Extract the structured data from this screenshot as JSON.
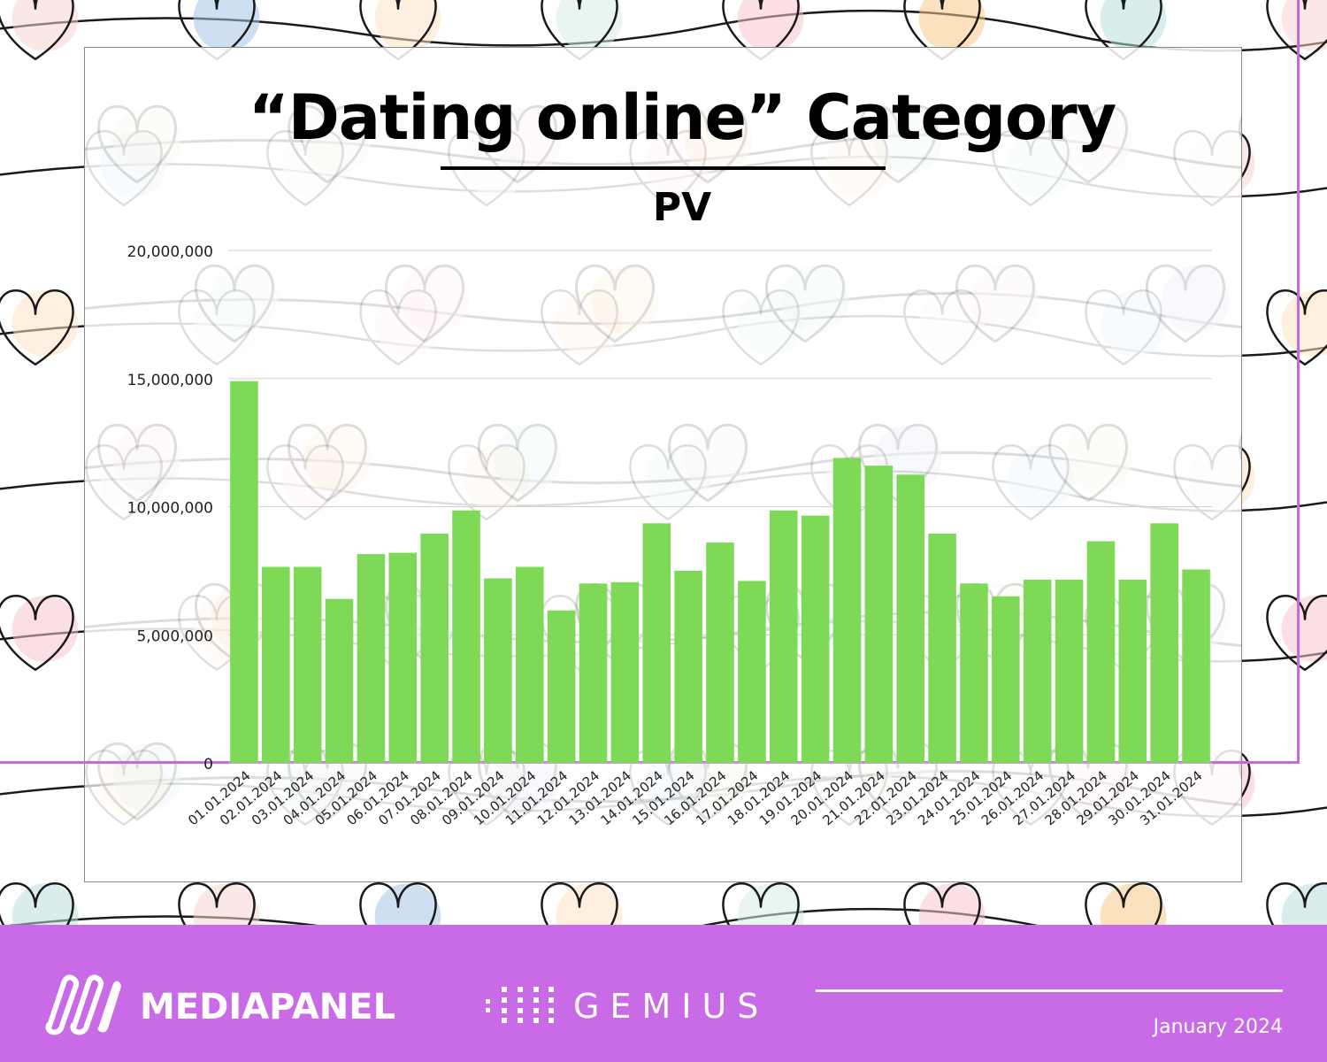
{
  "report": {
    "title": "“Dating online” Category",
    "subtitle": "PV",
    "period": "January 2024"
  },
  "brands": {
    "mediapanel": "MEDIAPANEL",
    "gemius": "GEMIUS"
  },
  "colors": {
    "bar": "#7ed957",
    "footer": "#c96ae6",
    "frame": "#c46bd8",
    "grid": "#d0d0d0"
  },
  "chart_data": {
    "type": "bar",
    "title": "“Dating online” Category",
    "subtitle": "PV",
    "xlabel": "",
    "ylabel": "",
    "ylim": [
      0,
      20000000
    ],
    "yticks": [
      0,
      5000000,
      10000000,
      15000000,
      20000000
    ],
    "ytick_labels": [
      "0",
      "5,000,000",
      "10,000,000",
      "15,000,000",
      "20,000,000"
    ],
    "grid": true,
    "legend": "none",
    "categories": [
      "01.01.2024",
      "02.01.2024",
      "03.01.2024",
      "04.01.2024",
      "05.01.2024",
      "06.01.2024",
      "07.01.2024",
      "08.01.2024",
      "09.01.2024",
      "10.01.2024",
      "11.01.2024",
      "12.01.2024",
      "13.01.2024",
      "14.01.2024",
      "15.01.2024",
      "16.01.2024",
      "17.01.2024",
      "18.01.2024",
      "19.01.2024",
      "20.01.2024",
      "21.01.2024",
      "22.01.2024",
      "23.01.2024",
      "24.01.2024",
      "25.01.2024",
      "26.01.2024",
      "27.01.2024",
      "28.01.2024",
      "29.01.2024",
      "30.01.2024",
      "31.01.2024"
    ],
    "values": [
      14900000,
      7650000,
      7650000,
      6400000,
      8150000,
      8200000,
      8950000,
      9850000,
      7200000,
      7650000,
      5950000,
      7000000,
      7050000,
      9350000,
      7500000,
      8600000,
      7100000,
      9850000,
      9650000,
      11900000,
      11600000,
      11250000,
      8950000,
      7000000,
      6500000,
      7150000,
      7150000,
      8650000,
      7150000,
      9350000,
      7550000
    ]
  }
}
